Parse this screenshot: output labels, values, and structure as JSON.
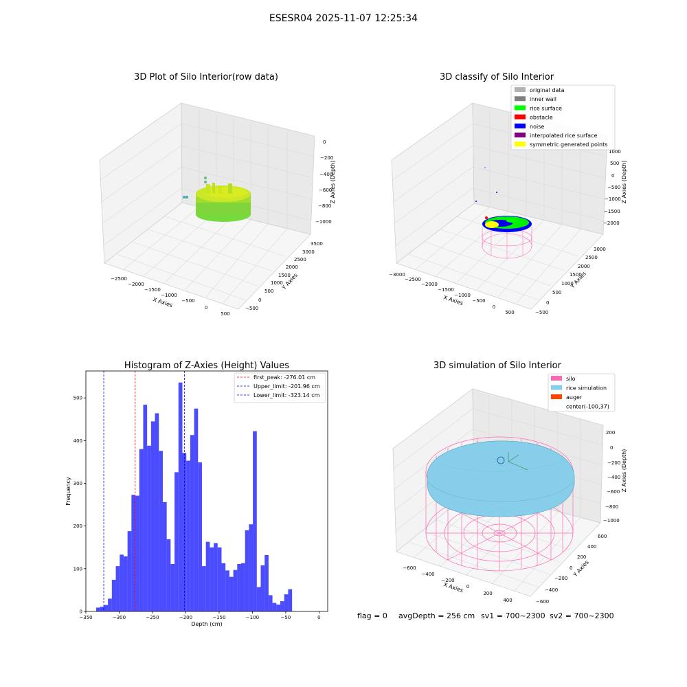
{
  "figure": {
    "suptitle": "ESESR04 2025-11-07 12:25:34",
    "footer": {
      "flag": "flag = 0",
      "avg": "avgDepth = 256 cm",
      "sv1": "sv1 = 700~2300",
      "sv2": "sv2 = 700~2300"
    }
  },
  "panels": {
    "p1": {
      "title": "3D Plot of Silo Interior(row data)",
      "xlabel": "X Axies",
      "ylabel": "Y Axies",
      "zlabel": "Z Axies (Depth)",
      "xticks": [
        "−2500",
        "−2000",
        "−1500",
        "−1000",
        "−500",
        "0",
        "500"
      ],
      "yticks": [
        "−500",
        "0",
        "500",
        "1000",
        "1500",
        "2000",
        "2500",
        "3000",
        "3500"
      ],
      "zticks": [
        "0",
        "−200",
        "−400",
        "−600",
        "−800",
        "−1000"
      ]
    },
    "p2": {
      "title": "3D classify of Silo Interior",
      "xlabel": "X Axies",
      "ylabel": "Y Axies",
      "zlabel": "Z Axies (Depth)",
      "xticks": [
        "−3000",
        "−2500",
        "−2000",
        "−1500",
        "−1000",
        "−500",
        "0",
        "500"
      ],
      "yticks": [
        "−500",
        "0",
        "500",
        "1000",
        "1500",
        "2000",
        "2500",
        "3000"
      ],
      "zticks": [
        "1000",
        "500",
        "0",
        "−500",
        "−1000",
        "−1500",
        "−2000"
      ],
      "legend": [
        {
          "label": "original data",
          "color": "#b3b3b3"
        },
        {
          "label": "inner wall",
          "color": "#808080"
        },
        {
          "label": "rice surface",
          "color": "#00ff00"
        },
        {
          "label": "obstacle",
          "color": "#ff0000"
        },
        {
          "label": "noise",
          "color": "#0000ff"
        },
        {
          "label": "interpolated rice surface",
          "color": "#800080"
        },
        {
          "label": "symmetric generated points",
          "color": "#ffff00"
        }
      ]
    },
    "p4": {
      "title": "3D simulation of Silo Interior",
      "xlabel": "X Axies",
      "ylabel": "Y Axies",
      "zlabel": "Z Axies (Depth)",
      "xticks": [
        "−600",
        "−400",
        "−200",
        "0",
        "200",
        "400"
      ],
      "yticks": [
        "−600",
        "−400",
        "−200",
        "0",
        "200",
        "400",
        "600"
      ],
      "zticks": [
        "200",
        "0",
        "−200",
        "−400",
        "−600",
        "−800",
        "−1000"
      ],
      "legend": [
        {
          "label": "silo",
          "color": "#ff69b4"
        },
        {
          "label": "rice simulation",
          "color": "#87ceeb"
        },
        {
          "label": "auger",
          "color": "#ff4500"
        },
        {
          "label": "center(-100,37)",
          "color": ""
        }
      ]
    }
  },
  "chart_data": {
    "type": "bar",
    "title": "Histogram of Z-Axies (Height) Values",
    "xlabel": "Depth (cm)",
    "ylabel": "Frequency",
    "xlim": [
      -350,
      13
    ],
    "ylim": [
      0,
      563
    ],
    "xticks": [
      -350,
      -300,
      -250,
      -200,
      -150,
      -100,
      -50,
      0
    ],
    "yticks": [
      0,
      100,
      200,
      300,
      400,
      500
    ],
    "bin_start": -334.5,
    "bin_width": 5.88,
    "values": [
      9,
      11,
      15,
      30,
      74,
      106,
      133,
      129,
      188,
      273,
      271,
      380,
      484,
      388,
      445,
      464,
      376,
      256,
      169,
      111,
      326,
      536,
      371,
      353,
      413,
      475,
      349,
      106,
      163,
      150,
      160,
      150,
      113,
      96,
      81,
      97,
      111,
      113,
      190,
      204,
      422,
      57,
      108,
      132,
      38,
      20,
      16,
      24,
      40,
      52
    ],
    "bar_color": "#0000ff",
    "vlines": [
      {
        "label": "first_peak: -276.01 cm",
        "x": -276.01,
        "color": "#ff0000"
      },
      {
        "label": "Upper_limit: -201.96 cm",
        "x": -201.96,
        "color": "#0000ff"
      },
      {
        "label": "Lower_limit: -323.14 cm",
        "x": -323.14,
        "color": "#0000ff"
      }
    ]
  }
}
